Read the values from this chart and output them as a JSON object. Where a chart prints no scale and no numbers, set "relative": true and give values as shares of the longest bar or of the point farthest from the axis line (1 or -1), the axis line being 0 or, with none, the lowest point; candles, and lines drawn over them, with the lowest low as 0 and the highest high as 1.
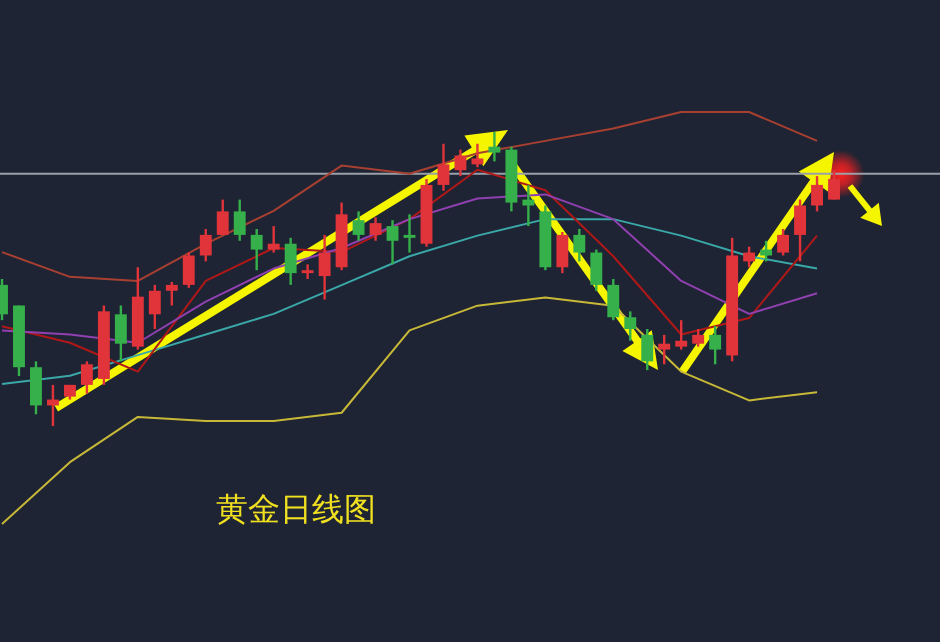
{
  "chart_data": [
    {
      "type": "candlestick",
      "relative": true,
      "categories": [
        null,
        null,
        null,
        null,
        null,
        null,
        null,
        null,
        null,
        null,
        null,
        null,
        null,
        null,
        null,
        null,
        null,
        null,
        null,
        null,
        null,
        null,
        null,
        null,
        null,
        null,
        null,
        null,
        null,
        null,
        null,
        null,
        null,
        null,
        null,
        null,
        null,
        null,
        null,
        null,
        null,
        null,
        null,
        null,
        null,
        null,
        null,
        null,
        null,
        null
      ],
      "ohlc": [
        [
          0.48,
          0.5,
          0.36,
          0.38
        ],
        [
          0.41,
          0.41,
          0.17,
          0.2
        ],
        [
          0.2,
          0.22,
          0.04,
          0.07
        ],
        [
          0.07,
          0.14,
          0,
          0.09
        ],
        [
          0.1,
          0.14,
          0.09,
          0.14
        ],
        [
          0.14,
          0.22,
          0.11,
          0.21
        ],
        [
          0.16,
          0.41,
          0.14,
          0.39
        ],
        [
          0.38,
          0.41,
          0.22,
          0.28
        ],
        [
          0.27,
          0.54,
          0.26,
          0.44
        ],
        [
          0.38,
          0.48,
          0.33,
          0.46
        ],
        [
          0.46,
          0.49,
          0.41,
          0.48
        ],
        [
          0.48,
          0.59,
          0.47,
          0.58
        ],
        [
          0.58,
          0.67,
          0.56,
          0.65
        ],
        [
          0.65,
          0.77,
          0.65,
          0.73
        ],
        [
          0.73,
          0.77,
          0.63,
          0.65
        ],
        [
          0.65,
          0.67,
          0.53,
          0.6
        ],
        [
          0.6,
          0.68,
          0.59,
          0.62
        ],
        [
          0.62,
          0.64,
          0.48,
          0.52
        ],
        [
          0.52,
          0.55,
          0.5,
          0.53
        ],
        [
          0.51,
          0.65,
          0.43,
          0.59
        ],
        [
          0.54,
          0.76,
          0.53,
          0.72
        ],
        [
          0.7,
          0.73,
          0.63,
          0.65
        ],
        [
          0.65,
          0.71,
          0.63,
          0.69
        ],
        [
          0.68,
          0.7,
          0.55,
          0.63
        ],
        [
          0.65,
          0.72,
          0.59,
          0.64
        ],
        [
          0.62,
          0.84,
          0.61,
          0.82
        ],
        [
          0.82,
          0.96,
          0.8,
          0.89
        ],
        [
          0.87,
          0.94,
          0.85,
          0.92
        ],
        [
          0.89,
          0.96,
          0.88,
          0.91
        ],
        [
          0.95,
          1.0,
          0.9,
          0.93
        ],
        [
          0.94,
          0.95,
          0.73,
          0.76
        ],
        [
          0.77,
          0.82,
          0.68,
          0.75
        ],
        [
          0.73,
          0.75,
          0.53,
          0.54
        ],
        [
          0.54,
          0.66,
          0.52,
          0.65
        ],
        [
          0.65,
          0.67,
          0.56,
          0.59
        ],
        [
          0.59,
          0.6,
          0.46,
          0.48
        ],
        [
          0.48,
          0.5,
          0.36,
          0.37
        ],
        [
          0.37,
          0.39,
          0.29,
          0.33
        ],
        [
          0.31,
          0.33,
          0.19,
          0.22
        ],
        [
          0.26,
          0.31,
          0.21,
          0.28
        ],
        [
          0.27,
          0.36,
          0.26,
          0.29
        ],
        [
          0.28,
          0.33,
          0.27,
          0.31
        ],
        [
          0.31,
          0.34,
          0.21,
          0.26
        ],
        [
          0.24,
          0.64,
          0.22,
          0.58
        ],
        [
          0.56,
          0.61,
          0.54,
          0.59
        ],
        [
          0.6,
          0.63,
          0.56,
          0.58
        ],
        [
          0.59,
          0.67,
          0.58,
          0.65
        ],
        [
          0.65,
          0.77,
          0.56,
          0.75
        ],
        [
          0.75,
          0.85,
          0.73,
          0.82
        ],
        [
          0.77,
          0.87,
          0.77,
          0.84
        ]
      ],
      "annotations": [
        "黄金日线图"
      ]
    },
    {
      "type": "line",
      "relative": true,
      "categories": [
        null,
        null,
        null,
        null,
        null,
        null,
        null,
        null,
        null,
        null,
        null,
        null,
        null
      ],
      "series": [
        {
          "color": "#a84032",
          "values": [
            0.66,
            0.6,
            0.59,
            0.68,
            0.76,
            0.87,
            0.85,
            0.9,
            0.93,
            0.96,
            1.0,
            1.0,
            0.93
          ]
        },
        {
          "color": "#c8b838",
          "values": [
            0,
            0.15,
            0.26,
            0.25,
            0.25,
            0.27,
            0.47,
            0.53,
            0.55,
            0.53,
            0.37,
            0.3,
            0.32
          ]
        },
        {
          "color": "#3aa8a8",
          "values": [
            0.34,
            0.36,
            0.41,
            0.46,
            0.51,
            0.58,
            0.65,
            0.7,
            0.74,
            0.74,
            0.7,
            0.65,
            0.62
          ]
        },
        {
          "color": "#b01818",
          "values": [
            0.48,
            0.44,
            0.37,
            0.59,
            0.67,
            0.66,
            0.74,
            0.86,
            0.81,
            0.65,
            0.46,
            0.5,
            0.7
          ]
        },
        {
          "color": "#9040b0",
          "values": [
            0.47,
            0.46,
            0.44,
            0.54,
            0.62,
            0.67,
            0.74,
            0.79,
            0.8,
            0.74,
            0.59,
            0.51,
            0.56
          ]
        }
      ],
      "ref_lines": [
        {
          "axis": "y",
          "value": 0.85,
          "color": "#9aa0aa"
        }
      ]
    }
  ]
}
